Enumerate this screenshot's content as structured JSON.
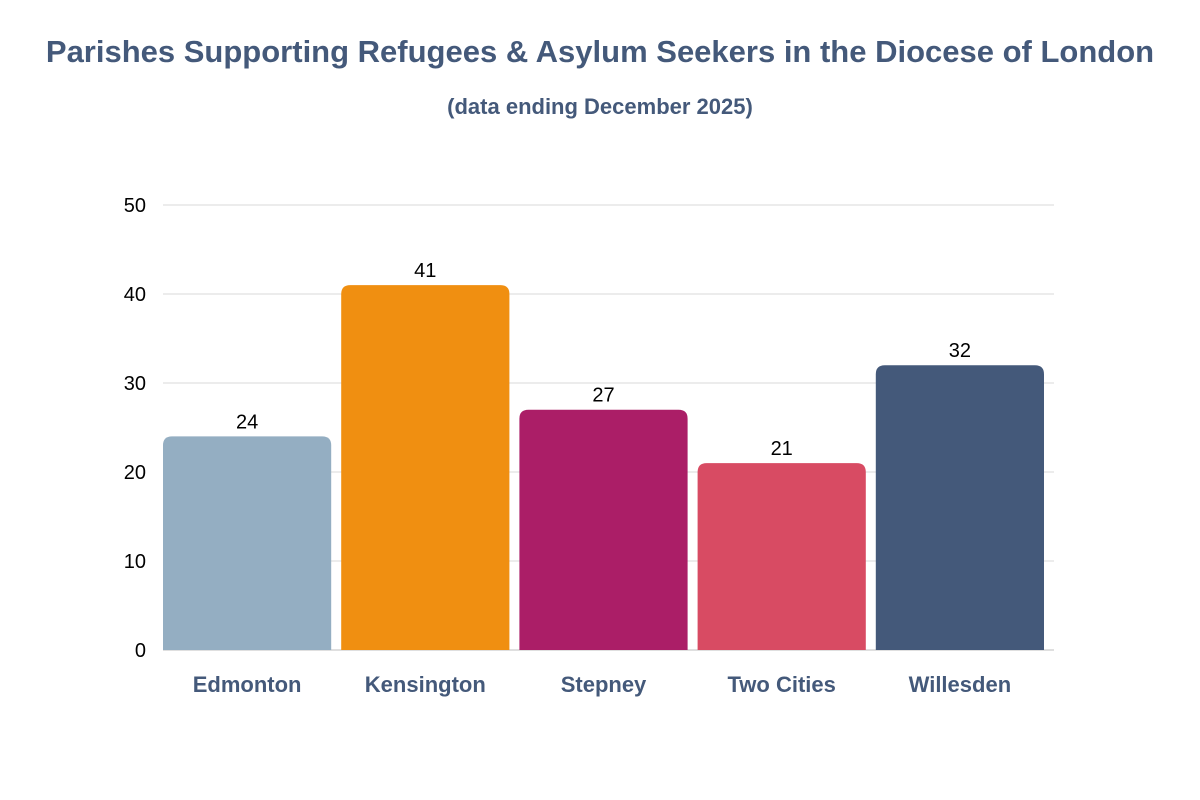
{
  "chart_data": {
    "type": "bar",
    "title": "Parishes Supporting Refugees & Asylum Seekers in the Diocese of London",
    "subtitle": "(data ending December 2025)",
    "xlabel": "",
    "ylabel": "",
    "categories": [
      "Edmonton",
      "Kensington",
      "Stepney",
      "Two Cities",
      "Willesden"
    ],
    "values": [
      24,
      41,
      27,
      21,
      32
    ],
    "data_labels": [
      "24",
      "41",
      "27",
      "21",
      "32"
    ],
    "colors": [
      "#94aec2",
      "#f08f11",
      "#ab1e67",
      "#d84b63",
      "#44597a"
    ],
    "ylim": [
      0,
      50
    ],
    "yticks": [
      0,
      10,
      20,
      30,
      40,
      50
    ],
    "ytick_labels": [
      "0",
      "10",
      "20",
      "30",
      "40",
      "50"
    ],
    "grid": true,
    "legend": "none"
  }
}
